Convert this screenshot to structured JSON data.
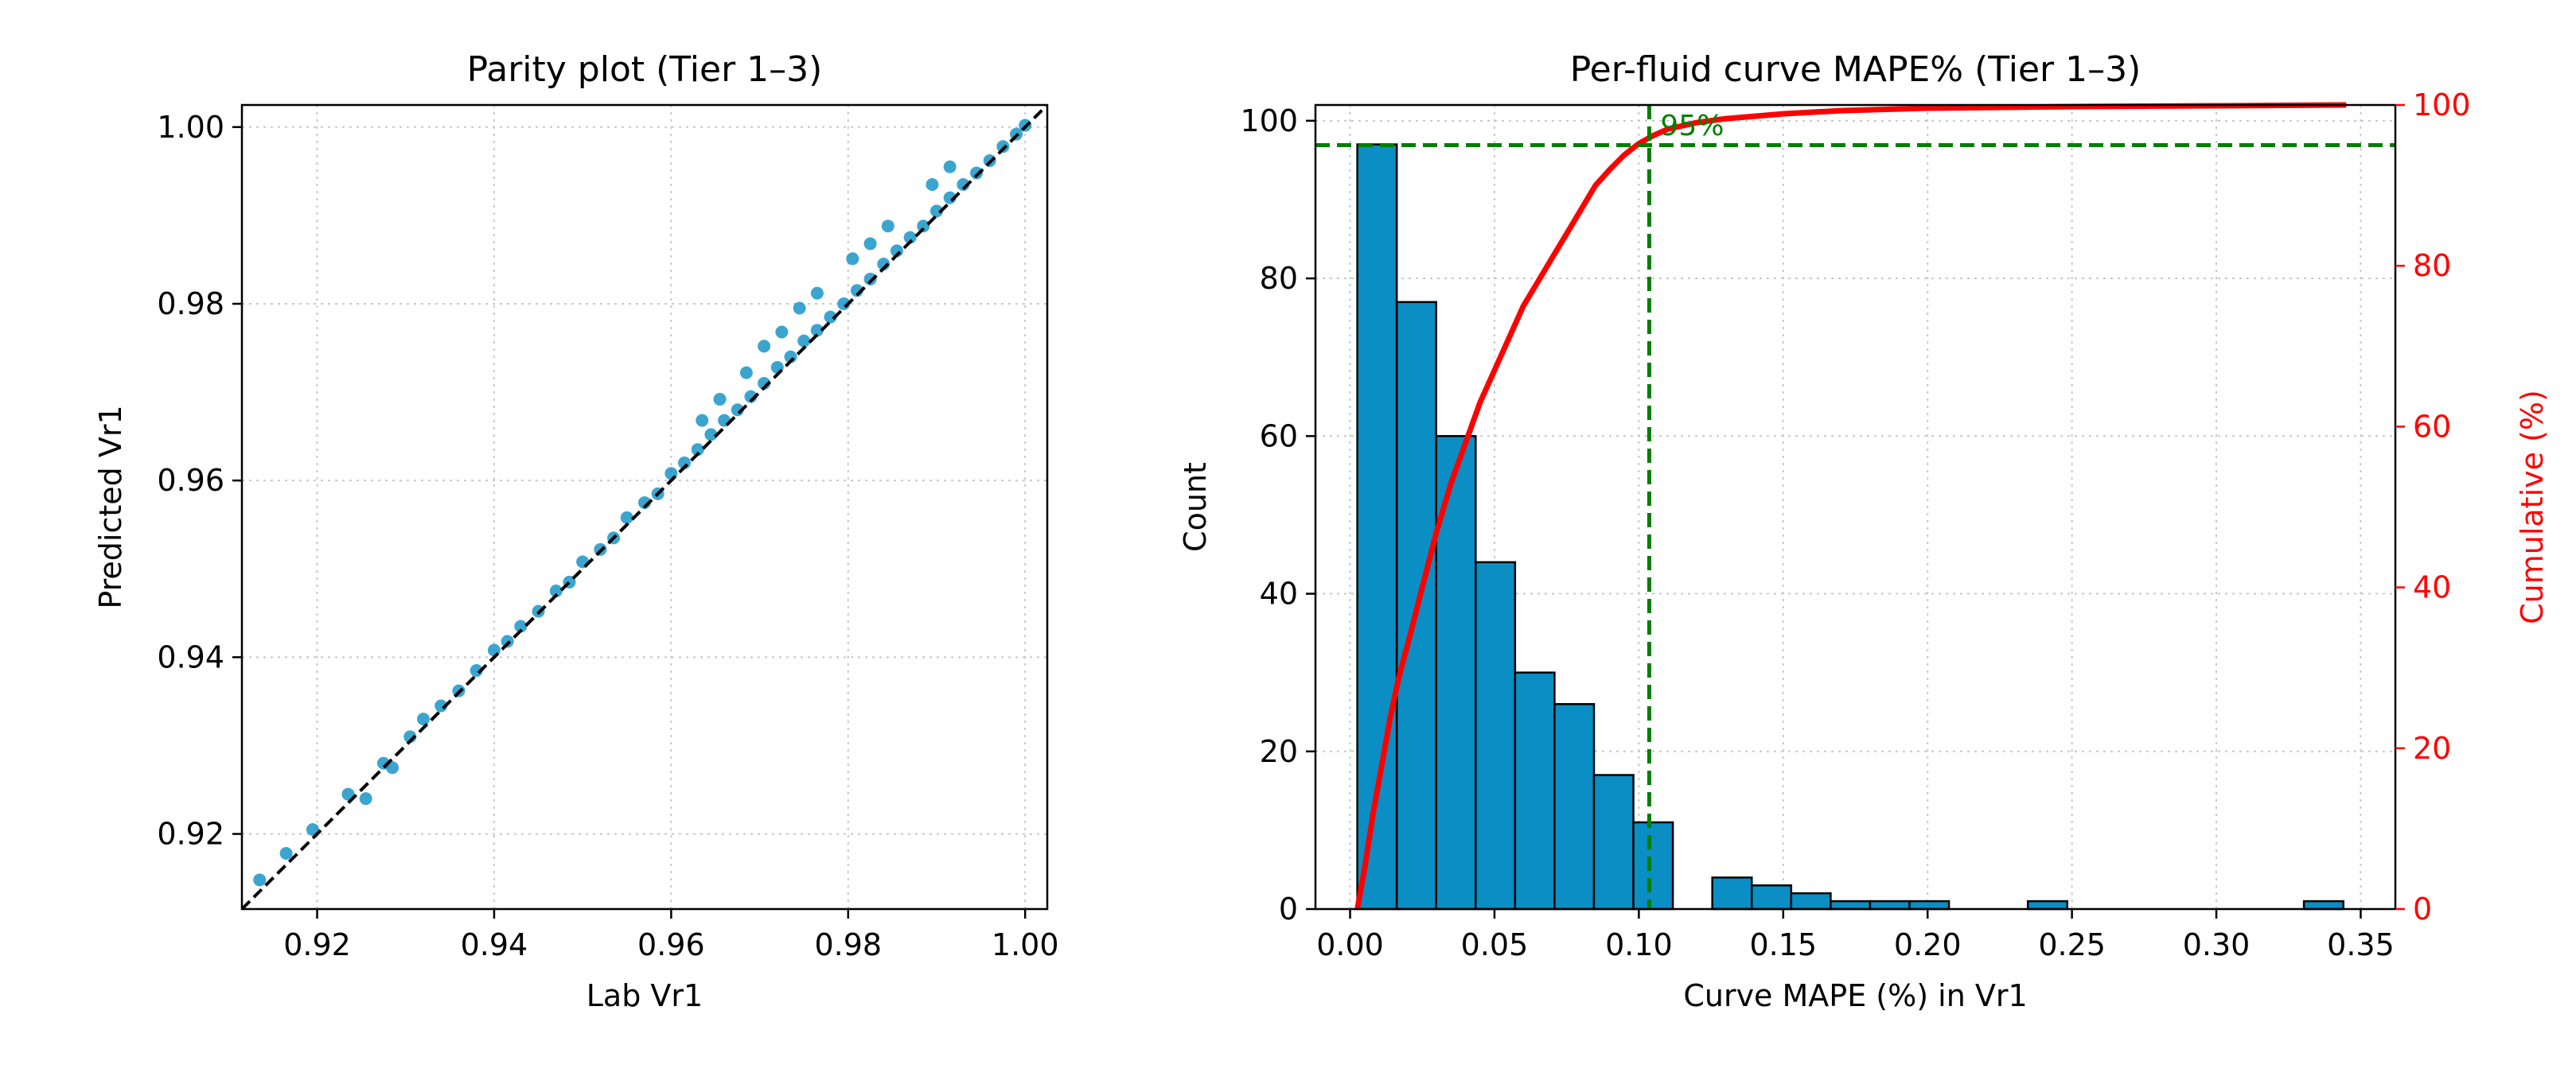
{
  "chart_data": [
    {
      "type": "scatter",
      "title": "Parity plot (Tier 1–3)",
      "xlabel": "Lab Vr1",
      "ylabel": "Predicted Vr1",
      "xlim": [
        0.9115,
        1.0025
      ],
      "ylim": [
        0.9115,
        1.0025
      ],
      "x_ticks": [
        "0.92",
        "0.94",
        "0.96",
        "0.98",
        "1.00"
      ],
      "y_ticks": [
        "0.92",
        "0.94",
        "0.96",
        "0.98",
        "1.00"
      ],
      "grid": true,
      "point_color": "#0a8ec4",
      "reference_line": {
        "style": "dashed",
        "color": "#000000",
        "from": [
          0.9115,
          0.9115
        ],
        "to": [
          1.0025,
          1.0025
        ]
      },
      "points": {
        "x": [
          0.9135,
          0.9165,
          0.9195,
          0.9235,
          0.9255,
          0.9275,
          0.9285,
          0.9305,
          0.932,
          0.934,
          0.936,
          0.938,
          0.94,
          0.9415,
          0.943,
          0.945,
          0.947,
          0.9485,
          0.95,
          0.952,
          0.9535,
          0.955,
          0.957,
          0.9585,
          0.96,
          0.9615,
          0.963,
          0.9645,
          0.966,
          0.9675,
          0.969,
          0.9705,
          0.972,
          0.9735,
          0.975,
          0.9765,
          0.978,
          0.9795,
          0.981,
          0.9825,
          0.984,
          0.9855,
          0.987,
          0.9885,
          0.99,
          0.9915,
          0.993,
          0.9945,
          0.996,
          0.9975,
          0.999,
          1.0,
          0.9705,
          0.9745,
          0.9765,
          0.9805,
          0.9825,
          0.9845,
          0.9895,
          0.9915,
          0.9685,
          0.9725,
          0.9635,
          0.9655
        ],
        "y": [
          0.9148,
          0.9178,
          0.9205,
          0.9245,
          0.924,
          0.928,
          0.9275,
          0.931,
          0.933,
          0.9345,
          0.9362,
          0.9385,
          0.9408,
          0.9418,
          0.9435,
          0.9452,
          0.9475,
          0.9485,
          0.9508,
          0.9522,
          0.9535,
          0.9558,
          0.9575,
          0.9585,
          0.9608,
          0.962,
          0.9635,
          0.9652,
          0.9668,
          0.968,
          0.9695,
          0.971,
          0.9728,
          0.974,
          0.9758,
          0.977,
          0.9785,
          0.98,
          0.9815,
          0.9828,
          0.9845,
          0.986,
          0.9875,
          0.9888,
          0.9905,
          0.992,
          0.9935,
          0.9948,
          0.9962,
          0.9978,
          0.9992,
          1.0002,
          0.9752,
          0.9795,
          0.9812,
          0.9851,
          0.9868,
          0.9888,
          0.9935,
          0.9955,
          0.9722,
          0.9768,
          0.9668,
          0.9692
        ]
      }
    },
    {
      "type": "bar",
      "subtype": "histogram_with_cumulative_line",
      "title": "Per-fluid curve MAPE% (Tier 1–3)",
      "xlabel": "Curve MAPE (%) in Vr1",
      "ylabel": "Count",
      "y2label": "Cumulative (%)",
      "xlim": [
        -0.012,
        0.362
      ],
      "ylim": [
        0,
        102
      ],
      "y2lim": [
        0,
        100
      ],
      "x_ticks": [
        "0.00",
        "0.05",
        "0.10",
        "0.15",
        "0.20",
        "0.25",
        "0.30",
        "0.35"
      ],
      "y_ticks": [
        "0",
        "20",
        "40",
        "60",
        "80",
        "100"
      ],
      "y2_ticks": [
        "0",
        "20",
        "40",
        "60",
        "80",
        "100"
      ],
      "grid": true,
      "bar_color": "#0a8ec4",
      "line_color": "#ff0000",
      "marker_color": "#008000",
      "bin_width": 0.01366,
      "bins_start": [
        0.0025,
        0.01616,
        0.02982,
        0.04348,
        0.05714,
        0.0708,
        0.08446,
        0.09812,
        0.11178,
        0.12544,
        0.1391,
        0.15276,
        0.16642,
        0.18008,
        0.19374,
        0.2074,
        0.22106,
        0.23472,
        0.24838,
        0.26204,
        0.2757,
        0.28936,
        0.30302,
        0.31668,
        0.33034
      ],
      "counts": [
        97,
        77,
        60,
        44,
        30,
        26,
        17,
        11,
        0,
        4,
        3,
        2,
        1,
        1,
        1,
        0,
        0,
        1,
        0,
        0,
        0,
        0,
        0,
        0,
        1
      ],
      "cumulative": {
        "x": [
          0.0025,
          0.005,
          0.008,
          0.011,
          0.014,
          0.017,
          0.02,
          0.025,
          0.03,
          0.035,
          0.04,
          0.045,
          0.05,
          0.055,
          0.06,
          0.065,
          0.07,
          0.075,
          0.08,
          0.085,
          0.09,
          0.095,
          0.1,
          0.105,
          0.11,
          0.12,
          0.13,
          0.15,
          0.17,
          0.2,
          0.25,
          0.3,
          0.345
        ],
        "y": [
          0,
          5,
          12,
          18,
          24,
          29,
          33,
          40,
          47,
          53,
          58,
          63,
          67,
          71,
          75,
          78,
          81,
          84,
          87,
          90,
          92,
          93.8,
          95.2,
          96.2,
          97,
          97.8,
          98.3,
          98.9,
          99.3,
          99.6,
          99.8,
          99.9,
          100
        ]
      },
      "percentile_marker": {
        "label": "95%",
        "x": 0.1036,
        "y_percent": 95
      }
    }
  ]
}
